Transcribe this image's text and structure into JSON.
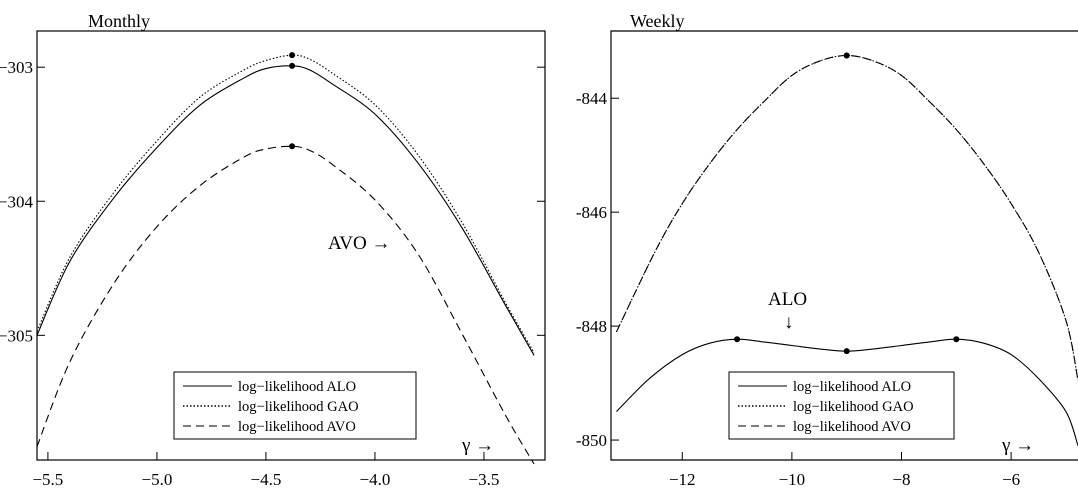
{
  "chart_data": [
    {
      "type": "line",
      "title": "Monthly",
      "xlim": [
        -5.55,
        -3.22
      ],
      "ylim": [
        -305.93,
        -302.73
      ],
      "xticks": [
        -5.5,
        -5.0,
        -4.5,
        -4.0,
        -3.5
      ],
      "xtick_labels": [
        "−5.5",
        "−5.0",
        "−4.5",
        "−4.0",
        "−3.5"
      ],
      "yticks": [
        -305,
        -304,
        -303
      ],
      "ytick_labels": [
        "−305",
        "−304",
        "−303"
      ],
      "x_arrow_label": "γ →",
      "legend": {
        "placement": "bottom-center",
        "entries": [
          "log−likelihood ALO",
          "log−likelihood GAO",
          "log−likelihood AVO"
        ]
      },
      "annotations": [
        {
          "text": "AVO →",
          "x": -4.1,
          "y": -304.5
        }
      ],
      "series": [
        {
          "name": "log−likelihood ALO",
          "style": "solid",
          "x": [
            -5.55,
            -5.4,
            -5.2,
            -5.0,
            -4.8,
            -4.6,
            -4.5,
            -4.38,
            -4.3,
            -4.2,
            -4.0,
            -3.8,
            -3.6,
            -3.4,
            -3.27
          ],
          "y": [
            -305.0,
            -304.45,
            -303.98,
            -303.6,
            -303.28,
            -303.08,
            -303.01,
            -302.99,
            -303.02,
            -303.12,
            -303.35,
            -303.72,
            -304.2,
            -304.78,
            -305.15
          ],
          "maxima": [
            {
              "x": -4.38,
              "y": -302.99
            }
          ]
        },
        {
          "name": "log−likelihood GAO",
          "style": "dotted",
          "x": [
            -5.55,
            -5.4,
            -5.2,
            -5.0,
            -4.8,
            -4.6,
            -4.5,
            -4.38,
            -4.3,
            -4.2,
            -4.0,
            -3.8,
            -3.6,
            -3.4,
            -3.27
          ],
          "y": [
            -304.97,
            -304.42,
            -303.94,
            -303.55,
            -303.22,
            -303.02,
            -302.95,
            -302.91,
            -302.94,
            -303.04,
            -303.28,
            -303.66,
            -304.16,
            -304.76,
            -305.13
          ],
          "maxima": [
            {
              "x": -4.38,
              "y": -302.91
            }
          ]
        },
        {
          "name": "log−likelihood AVO",
          "style": "dashed",
          "x": [
            -5.55,
            -5.4,
            -5.2,
            -5.0,
            -4.8,
            -4.6,
            -4.5,
            -4.38,
            -4.3,
            -4.2,
            -4.0,
            -3.8,
            -3.6,
            -3.4,
            -3.27
          ],
          "y": [
            -305.83,
            -305.2,
            -304.62,
            -304.19,
            -303.88,
            -303.67,
            -303.61,
            -303.59,
            -303.62,
            -303.72,
            -303.99,
            -304.4,
            -304.99,
            -305.6,
            -305.96
          ],
          "maxima": [
            {
              "x": -4.38,
              "y": -303.59
            }
          ]
        }
      ]
    },
    {
      "type": "line",
      "title": "Weekly",
      "xlim": [
        -13.3,
        -4.78
      ],
      "ylim": [
        -850.35,
        -842.82
      ],
      "xticks": [
        -12,
        -10,
        -8,
        -6
      ],
      "xtick_labels": [
        "−12",
        "−10",
        "−8",
        "−6"
      ],
      "yticks": [
        -850,
        -848,
        -846,
        -844
      ],
      "ytick_labels": [
        "-850",
        "-848",
        "-846",
        "-844"
      ],
      "x_arrow_label": "γ →",
      "legend": {
        "placement": "bottom-center",
        "entries": [
          "log−likelihood ALO",
          "log−likelihood GAO",
          "log−likelihood AVO"
        ]
      },
      "annotations": [
        {
          "text": "ALO",
          "x": -10.0,
          "y": -847.7,
          "arrow": "↓"
        }
      ],
      "series": [
        {
          "name": "log−likelihood ALO",
          "style": "solid",
          "x": [
            -13.2,
            -12.6,
            -12.0,
            -11.5,
            -11.0,
            -10.5,
            -10.0,
            -9.5,
            -9.0,
            -8.5,
            -8.0,
            -7.5,
            -7.0,
            -6.5,
            -6.0,
            -5.5,
            -5.0,
            -4.78
          ],
          "y": [
            -849.5,
            -848.92,
            -848.5,
            -848.3,
            -848.23,
            -848.28,
            -848.34,
            -848.4,
            -848.44,
            -848.4,
            -848.34,
            -848.28,
            -848.23,
            -848.3,
            -848.5,
            -848.92,
            -849.5,
            -850.1
          ],
          "maxima": [
            {
              "x": -11.0,
              "y": -848.23
            },
            {
              "x": -9.0,
              "y": -848.44
            },
            {
              "x": -7.0,
              "y": -848.23
            }
          ]
        },
        {
          "name": "log−likelihood GAO",
          "style": "dotted",
          "x": [
            -13.2,
            -12.5,
            -12.0,
            -11.5,
            -11.0,
            -10.5,
            -10.0,
            -9.5,
            -9.0,
            -8.5,
            -8.0,
            -7.5,
            -7.0,
            -6.5,
            -6.0,
            -5.5,
            -5.0,
            -4.78
          ],
          "y": [
            -848.1,
            -846.7,
            -845.85,
            -845.15,
            -844.55,
            -844.05,
            -843.6,
            -843.35,
            -843.25,
            -843.35,
            -843.6,
            -844.05,
            -844.55,
            -845.15,
            -845.85,
            -846.7,
            -847.9,
            -848.95
          ],
          "maxima": [
            {
              "x": -9.0,
              "y": -843.25
            }
          ]
        },
        {
          "name": "log−likelihood AVO",
          "style": "dashed",
          "x": [
            -13.2,
            -12.5,
            -12.0,
            -11.5,
            -11.0,
            -10.5,
            -10.0,
            -9.5,
            -9.0,
            -8.5,
            -8.0,
            -7.5,
            -7.0,
            -6.5,
            -6.0,
            -5.5,
            -5.0,
            -4.78
          ],
          "y": [
            -848.1,
            -846.7,
            -845.85,
            -845.15,
            -844.55,
            -844.05,
            -843.6,
            -843.35,
            -843.25,
            -843.35,
            -843.6,
            -844.05,
            -844.55,
            -845.15,
            -845.85,
            -846.7,
            -847.9,
            -848.95
          ],
          "maxima": [
            {
              "x": -9.0,
              "y": -843.25
            }
          ]
        }
      ]
    }
  ]
}
